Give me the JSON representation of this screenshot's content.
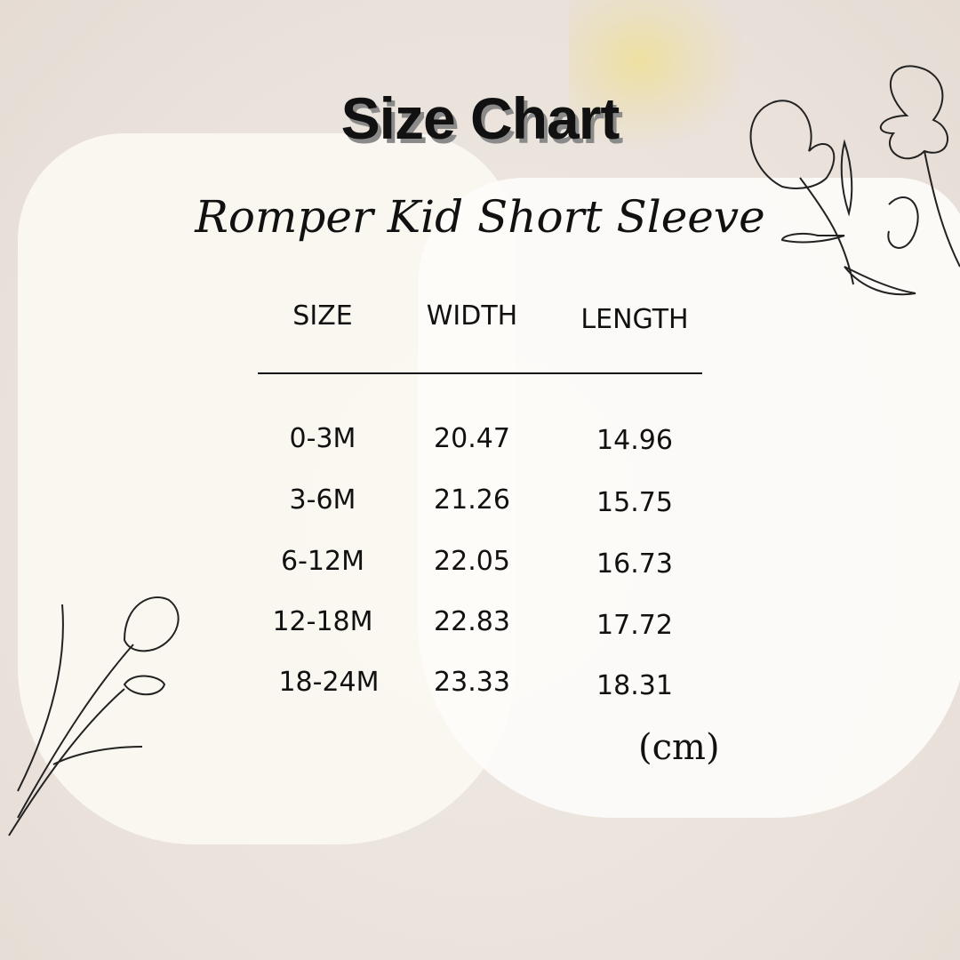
{
  "title": "Size Chart",
  "subtitle": "Romper Kid Short Sleeve",
  "table": {
    "headers": [
      "SIZE",
      "WIDTH",
      "LENGTH"
    ],
    "rows": [
      [
        "0-3M",
        "20.47",
        "14.96"
      ],
      [
        "3-6M",
        "21.26",
        "15.75"
      ],
      [
        "6-12M",
        "22.05",
        "16.73"
      ],
      [
        "12-18M",
        "22.83",
        "17.72"
      ],
      [
        "18-24M",
        "23.33",
        "18.31"
      ]
    ]
  },
  "unit": "(cm)"
}
